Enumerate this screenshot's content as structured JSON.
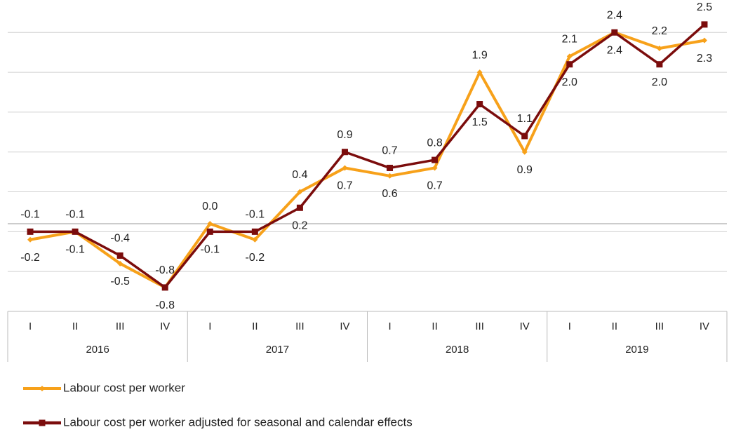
{
  "chart_data": {
    "type": "line",
    "categories": [
      "I",
      "II",
      "III",
      "IV",
      "I",
      "II",
      "III",
      "IV",
      "I",
      "II",
      "III",
      "IV",
      "I",
      "II",
      "III",
      "IV"
    ],
    "category_groups": [
      "2016",
      "2017",
      "2018",
      "2019"
    ],
    "series": [
      {
        "name": "Labour cost per worker",
        "color": "#f7a11a",
        "values": [
          -0.2,
          -0.1,
          -0.5,
          -0.8,
          0.0,
          -0.2,
          0.4,
          0.7,
          0.6,
          0.7,
          1.9,
          0.9,
          2.1,
          2.4,
          2.2,
          2.3
        ],
        "value_labels": [
          "-0.2",
          "-0.1",
          "-0.5",
          "-0.8",
          "0.0",
          "-0.2",
          "0.4",
          "0.7",
          "0.6",
          "0.7",
          "1.9",
          "0.9",
          "2.1",
          "2.4",
          "2.2",
          "2.3"
        ]
      },
      {
        "name": "Labour cost per worker adjusted for seasonal and calendar effects",
        "color": "#7b0c0c",
        "values": [
          -0.1,
          -0.1,
          -0.4,
          -0.8,
          -0.1,
          -0.1,
          0.2,
          0.9,
          0.7,
          0.8,
          1.5,
          1.1,
          2.0,
          2.4,
          2.0,
          2.5
        ],
        "value_labels": [
          "-0.1",
          "-0.1",
          "-0.4",
          "-0.8",
          "-0.1",
          "-0.1",
          "0.2",
          "0.9",
          "0.7",
          "0.8",
          "1.5",
          "1.1",
          "2.0",
          "2.4",
          "2.0",
          "2.5"
        ]
      }
    ],
    "ylim": [
      -1.1,
      2.8
    ],
    "yticks": [
      -1.1,
      -0.6,
      -0.1,
      0.4,
      0.9,
      1.4,
      1.9,
      2.4
    ],
    "grid": true
  }
}
